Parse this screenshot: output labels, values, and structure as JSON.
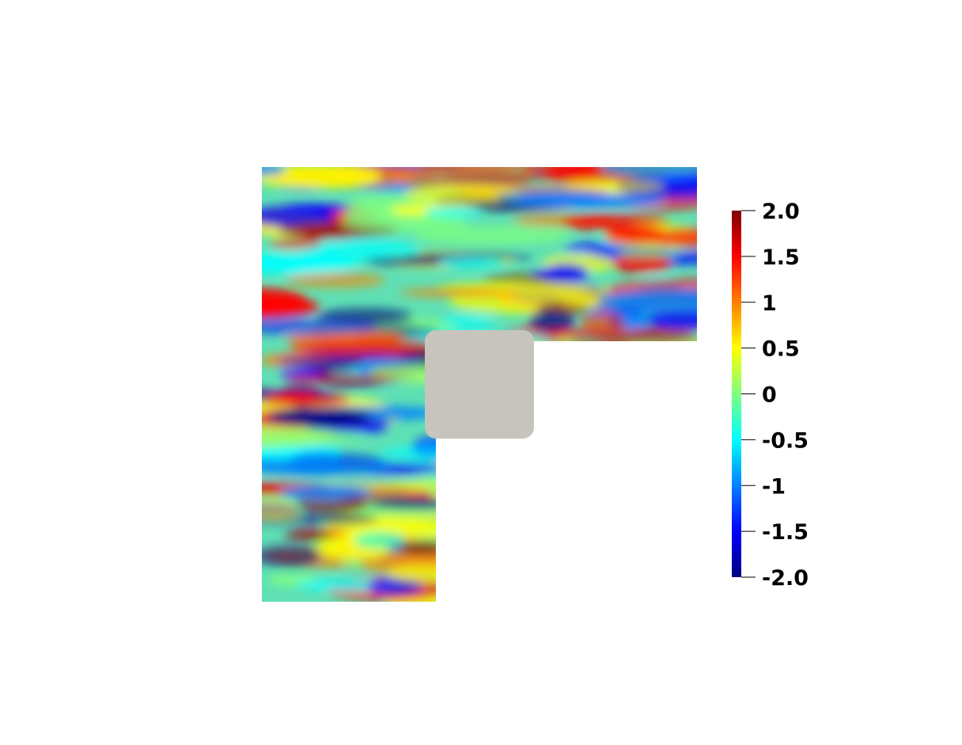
{
  "colorbar": {
    "colormap": "jet",
    "range": [
      -2.0,
      2.0
    ],
    "ticks": [
      {
        "value": 2.0,
        "label": "2.0"
      },
      {
        "value": 1.5,
        "label": "1.5"
      },
      {
        "value": 1.0,
        "label": "1"
      },
      {
        "value": 0.5,
        "label": "0.5"
      },
      {
        "value": 0.0,
        "label": "0"
      },
      {
        "value": -0.5,
        "label": "-0.5"
      },
      {
        "value": -1.0,
        "label": "-1"
      },
      {
        "value": -1.5,
        "label": "-1.5"
      },
      {
        "value": -2.0,
        "label": "-2.0"
      }
    ]
  },
  "colors": {
    "background": "#ffffff",
    "obstacle": "#c7c4bd",
    "jet_stops": [
      "#00007f",
      "#0000ff",
      "#007fff",
      "#00ffff",
      "#7fff7f",
      "#ffff00",
      "#ff7f00",
      "#ff0000",
      "#7f0000"
    ]
  }
}
